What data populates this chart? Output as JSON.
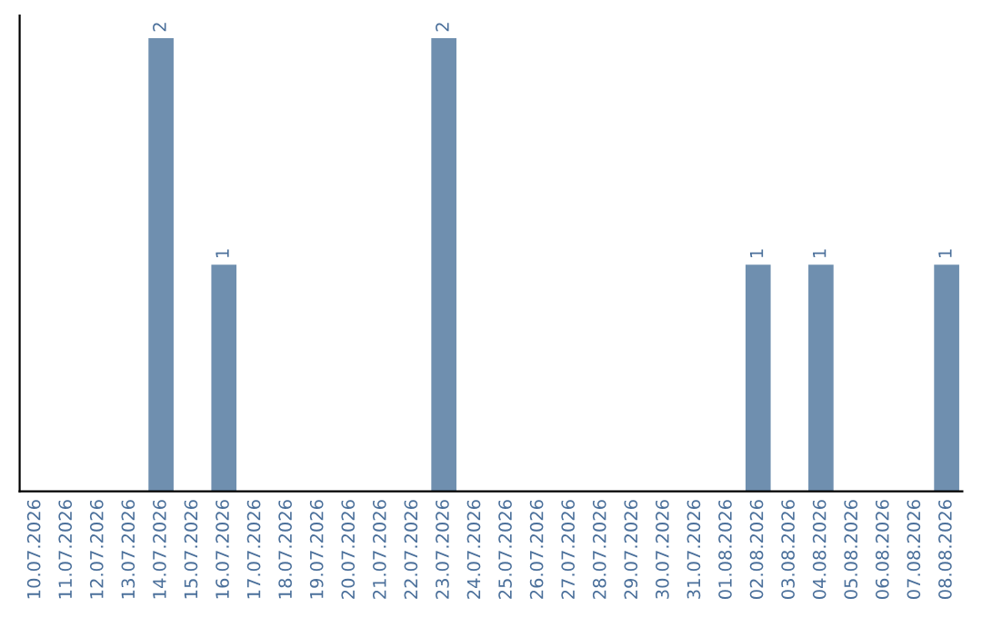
{
  "chart_data": {
    "type": "bar",
    "categories": [
      "10.07.2026",
      "11.07.2026",
      "12.07.2026",
      "13.07.2026",
      "14.07.2026",
      "15.07.2026",
      "16.07.2026",
      "17.07.2026",
      "18.07.2026",
      "19.07.2026",
      "20.07.2026",
      "21.07.2026",
      "22.07.2026",
      "23.07.2026",
      "24.07.2026",
      "25.07.2026",
      "26.07.2026",
      "27.07.2026",
      "28.07.2026",
      "29.07.2026",
      "30.07.2026",
      "31.07.2026",
      "01.08.2026",
      "02.08.2026",
      "03.08.2026",
      "04.08.2026",
      "05.08.2026",
      "06.08.2026",
      "07.08.2026",
      "08.08.2026"
    ],
    "values": [
      0,
      0,
      0,
      0,
      2,
      0,
      1,
      0,
      0,
      0,
      0,
      0,
      0,
      2,
      0,
      0,
      0,
      0,
      0,
      0,
      0,
      0,
      0,
      1,
      0,
      1,
      0,
      0,
      0,
      1
    ],
    "value_labels": [
      null,
      null,
      null,
      null,
      "2",
      null,
      "1",
      null,
      null,
      null,
      null,
      null,
      null,
      "2",
      null,
      null,
      null,
      null,
      null,
      null,
      null,
      null,
      null,
      "1",
      null,
      "1",
      null,
      null,
      null,
      "1"
    ],
    "color": "#6f8faf",
    "tick_labels": "x",
    "grid": false
  }
}
